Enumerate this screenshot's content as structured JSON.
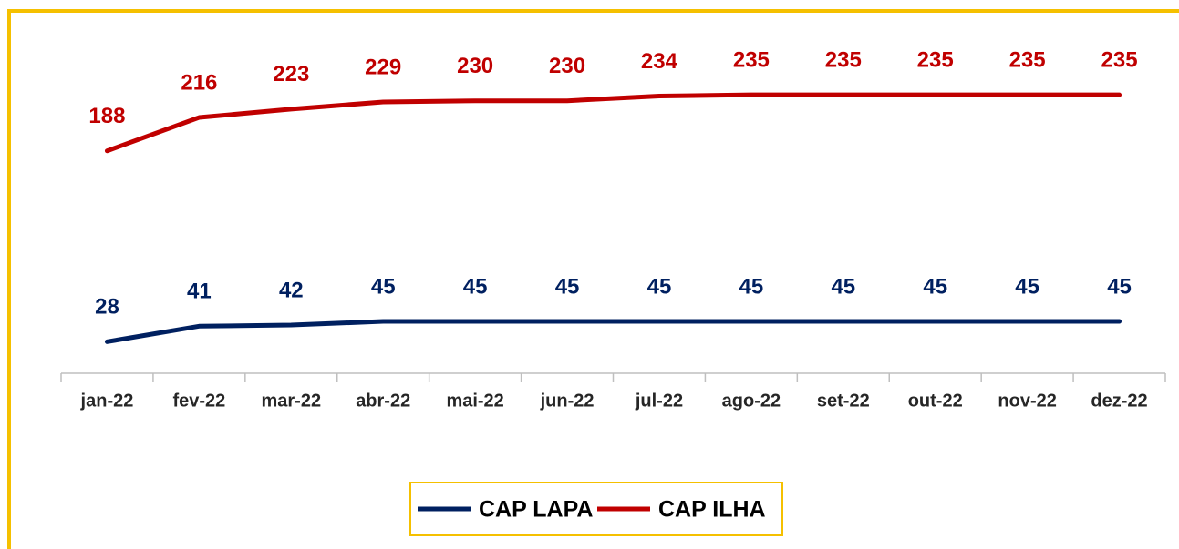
{
  "chart_data": {
    "type": "line",
    "categories": [
      "jan-22",
      "fev-22",
      "mar-22",
      "abr-22",
      "mai-22",
      "jun-22",
      "jul-22",
      "ago-22",
      "set-22",
      "out-22",
      "nov-22",
      "dez-22"
    ],
    "series": [
      {
        "name": "CAP LAPA",
        "color": "#002060",
        "values": [
          28,
          41,
          42,
          45,
          45,
          45,
          45,
          45,
          45,
          45,
          45,
          45
        ]
      },
      {
        "name": "CAP ILHA",
        "color": "#c00000",
        "values": [
          188,
          216,
          223,
          229,
          230,
          230,
          234,
          235,
          235,
          235,
          235,
          235
        ]
      }
    ],
    "ylim": [
      0,
      300
    ]
  }
}
